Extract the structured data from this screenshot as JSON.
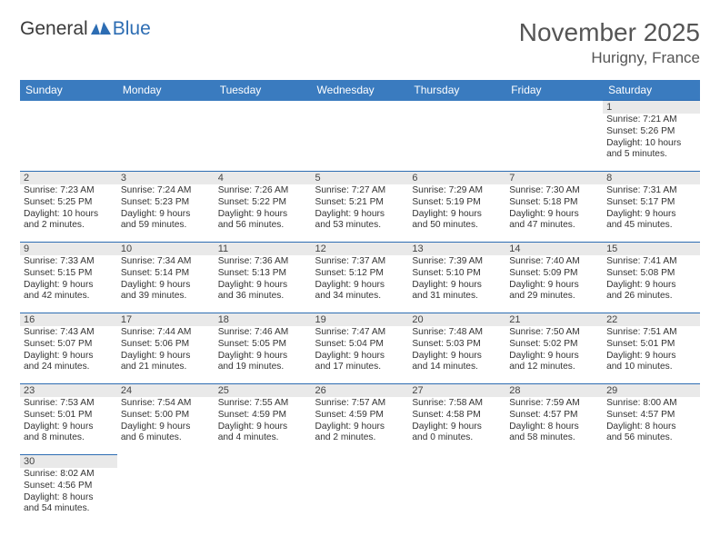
{
  "logo": {
    "text1": "General",
    "text2": "Blue"
  },
  "title": "November 2025",
  "location": "Hurigny, France",
  "colors": {
    "header_bg": "#3a7bbf",
    "border": "#2d6db3",
    "daynum_bg": "#e9e9e9",
    "text": "#333333",
    "logo_accent": "#2d6db3"
  },
  "weekdays": [
    "Sunday",
    "Monday",
    "Tuesday",
    "Wednesday",
    "Thursday",
    "Friday",
    "Saturday"
  ],
  "weeks": [
    [
      null,
      null,
      null,
      null,
      null,
      null,
      {
        "n": "1",
        "sr": "Sunrise: 7:21 AM",
        "ss": "Sunset: 5:26 PM",
        "dl1": "Daylight: 10 hours",
        "dl2": "and 5 minutes."
      }
    ],
    [
      {
        "n": "2",
        "sr": "Sunrise: 7:23 AM",
        "ss": "Sunset: 5:25 PM",
        "dl1": "Daylight: 10 hours",
        "dl2": "and 2 minutes."
      },
      {
        "n": "3",
        "sr": "Sunrise: 7:24 AM",
        "ss": "Sunset: 5:23 PM",
        "dl1": "Daylight: 9 hours",
        "dl2": "and 59 minutes."
      },
      {
        "n": "4",
        "sr": "Sunrise: 7:26 AM",
        "ss": "Sunset: 5:22 PM",
        "dl1": "Daylight: 9 hours",
        "dl2": "and 56 minutes."
      },
      {
        "n": "5",
        "sr": "Sunrise: 7:27 AM",
        "ss": "Sunset: 5:21 PM",
        "dl1": "Daylight: 9 hours",
        "dl2": "and 53 minutes."
      },
      {
        "n": "6",
        "sr": "Sunrise: 7:29 AM",
        "ss": "Sunset: 5:19 PM",
        "dl1": "Daylight: 9 hours",
        "dl2": "and 50 minutes."
      },
      {
        "n": "7",
        "sr": "Sunrise: 7:30 AM",
        "ss": "Sunset: 5:18 PM",
        "dl1": "Daylight: 9 hours",
        "dl2": "and 47 minutes."
      },
      {
        "n": "8",
        "sr": "Sunrise: 7:31 AM",
        "ss": "Sunset: 5:17 PM",
        "dl1": "Daylight: 9 hours",
        "dl2": "and 45 minutes."
      }
    ],
    [
      {
        "n": "9",
        "sr": "Sunrise: 7:33 AM",
        "ss": "Sunset: 5:15 PM",
        "dl1": "Daylight: 9 hours",
        "dl2": "and 42 minutes."
      },
      {
        "n": "10",
        "sr": "Sunrise: 7:34 AM",
        "ss": "Sunset: 5:14 PM",
        "dl1": "Daylight: 9 hours",
        "dl2": "and 39 minutes."
      },
      {
        "n": "11",
        "sr": "Sunrise: 7:36 AM",
        "ss": "Sunset: 5:13 PM",
        "dl1": "Daylight: 9 hours",
        "dl2": "and 36 minutes."
      },
      {
        "n": "12",
        "sr": "Sunrise: 7:37 AM",
        "ss": "Sunset: 5:12 PM",
        "dl1": "Daylight: 9 hours",
        "dl2": "and 34 minutes."
      },
      {
        "n": "13",
        "sr": "Sunrise: 7:39 AM",
        "ss": "Sunset: 5:10 PM",
        "dl1": "Daylight: 9 hours",
        "dl2": "and 31 minutes."
      },
      {
        "n": "14",
        "sr": "Sunrise: 7:40 AM",
        "ss": "Sunset: 5:09 PM",
        "dl1": "Daylight: 9 hours",
        "dl2": "and 29 minutes."
      },
      {
        "n": "15",
        "sr": "Sunrise: 7:41 AM",
        "ss": "Sunset: 5:08 PM",
        "dl1": "Daylight: 9 hours",
        "dl2": "and 26 minutes."
      }
    ],
    [
      {
        "n": "16",
        "sr": "Sunrise: 7:43 AM",
        "ss": "Sunset: 5:07 PM",
        "dl1": "Daylight: 9 hours",
        "dl2": "and 24 minutes."
      },
      {
        "n": "17",
        "sr": "Sunrise: 7:44 AM",
        "ss": "Sunset: 5:06 PM",
        "dl1": "Daylight: 9 hours",
        "dl2": "and 21 minutes."
      },
      {
        "n": "18",
        "sr": "Sunrise: 7:46 AM",
        "ss": "Sunset: 5:05 PM",
        "dl1": "Daylight: 9 hours",
        "dl2": "and 19 minutes."
      },
      {
        "n": "19",
        "sr": "Sunrise: 7:47 AM",
        "ss": "Sunset: 5:04 PM",
        "dl1": "Daylight: 9 hours",
        "dl2": "and 17 minutes."
      },
      {
        "n": "20",
        "sr": "Sunrise: 7:48 AM",
        "ss": "Sunset: 5:03 PM",
        "dl1": "Daylight: 9 hours",
        "dl2": "and 14 minutes."
      },
      {
        "n": "21",
        "sr": "Sunrise: 7:50 AM",
        "ss": "Sunset: 5:02 PM",
        "dl1": "Daylight: 9 hours",
        "dl2": "and 12 minutes."
      },
      {
        "n": "22",
        "sr": "Sunrise: 7:51 AM",
        "ss": "Sunset: 5:01 PM",
        "dl1": "Daylight: 9 hours",
        "dl2": "and 10 minutes."
      }
    ],
    [
      {
        "n": "23",
        "sr": "Sunrise: 7:53 AM",
        "ss": "Sunset: 5:01 PM",
        "dl1": "Daylight: 9 hours",
        "dl2": "and 8 minutes."
      },
      {
        "n": "24",
        "sr": "Sunrise: 7:54 AM",
        "ss": "Sunset: 5:00 PM",
        "dl1": "Daylight: 9 hours",
        "dl2": "and 6 minutes."
      },
      {
        "n": "25",
        "sr": "Sunrise: 7:55 AM",
        "ss": "Sunset: 4:59 PM",
        "dl1": "Daylight: 9 hours",
        "dl2": "and 4 minutes."
      },
      {
        "n": "26",
        "sr": "Sunrise: 7:57 AM",
        "ss": "Sunset: 4:59 PM",
        "dl1": "Daylight: 9 hours",
        "dl2": "and 2 minutes."
      },
      {
        "n": "27",
        "sr": "Sunrise: 7:58 AM",
        "ss": "Sunset: 4:58 PM",
        "dl1": "Daylight: 9 hours",
        "dl2": "and 0 minutes."
      },
      {
        "n": "28",
        "sr": "Sunrise: 7:59 AM",
        "ss": "Sunset: 4:57 PM",
        "dl1": "Daylight: 8 hours",
        "dl2": "and 58 minutes."
      },
      {
        "n": "29",
        "sr": "Sunrise: 8:00 AM",
        "ss": "Sunset: 4:57 PM",
        "dl1": "Daylight: 8 hours",
        "dl2": "and 56 minutes."
      }
    ],
    [
      {
        "n": "30",
        "sr": "Sunrise: 8:02 AM",
        "ss": "Sunset: 4:56 PM",
        "dl1": "Daylight: 8 hours",
        "dl2": "and 54 minutes."
      },
      null,
      null,
      null,
      null,
      null,
      null
    ]
  ]
}
